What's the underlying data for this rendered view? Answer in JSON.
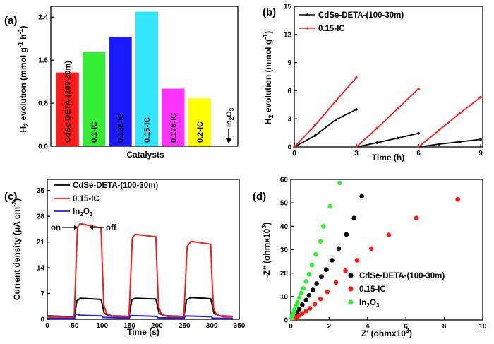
{
  "colors": {
    "black": "#000000",
    "red": "#ff1a1a",
    "blue": "#1a1aff",
    "green": "#33ee33",
    "cyan": "#33e5ff",
    "magenta": "#ff33ff",
    "yellow": "#ffff00"
  },
  "chart_data": [
    {
      "panel": "(a)",
      "type": "bar",
      "xlabel": "Catalysts",
      "ylabel": "H2 evolution (mmol g-1 h-1)",
      "ylim": [
        0,
        2.6
      ],
      "yticks": [
        "0.0",
        "0.8",
        "1.6",
        "2.4"
      ],
      "categories": [
        "CdSe-DETA-(100-30m)",
        "0.1-IC",
        "0.125-IC",
        "0.15-IC",
        "0.175-IC",
        "0.2-IC",
        "In2O3"
      ],
      "values": [
        1.37,
        1.75,
        2.03,
        2.5,
        1.07,
        0.89,
        0.0
      ],
      "bar_colors": [
        "#ff1a1a",
        "#33ee33",
        "#1a1aff",
        "#33e5ff",
        "#ff33ff",
        "#ffff00",
        "#ffffff"
      ]
    },
    {
      "panel": "(b)",
      "type": "line",
      "xlabel": "Time (h)",
      "ylabel": "H2 evolution (mmol g-1)",
      "xlim": [
        0,
        9.1
      ],
      "ylim": [
        0,
        15
      ],
      "xticks": [
        "0",
        "3",
        "6",
        "9"
      ],
      "yticks": [
        "0",
        "3",
        "6",
        "9",
        "12",
        "15"
      ],
      "series": [
        {
          "name": "CdSe-DETA-(100-30m)",
          "color": "#000000",
          "segments": [
            [
              [
                0,
                0
              ],
              [
                1,
                1.2
              ],
              [
                2,
                2.9
              ],
              [
                3,
                4.0
              ]
            ],
            [
              [
                3,
                0
              ],
              [
                4,
                0.45
              ],
              [
                5,
                0.95
              ],
              [
                6,
                1.45
              ]
            ],
            [
              [
                6,
                0
              ],
              [
                7,
                0.3
              ],
              [
                8,
                0.55
              ],
              [
                9,
                0.8
              ]
            ]
          ]
        },
        {
          "name": "0.15-IC",
          "color": "#ff1a1a",
          "segments": [
            [
              [
                0,
                0
              ],
              [
                1,
                2.3
              ],
              [
                2,
                4.9
              ],
              [
                3,
                7.4
              ]
            ],
            [
              [
                3,
                0
              ],
              [
                4,
                2.0
              ],
              [
                5,
                4.1
              ],
              [
                6,
                6.2
              ]
            ],
            [
              [
                6,
                0
              ],
              [
                7,
                1.8
              ],
              [
                8,
                3.6
              ],
              [
                9,
                5.3
              ]
            ]
          ]
        }
      ]
    },
    {
      "panel": "(c)",
      "type": "line",
      "xlabel": "Time (s)",
      "ylabel": "Current density (μA cm-2)",
      "xlim": [
        0,
        350
      ],
      "ylim": [
        0,
        38
      ],
      "xticks": [
        "0",
        "50",
        "100",
        "150",
        "200",
        "250",
        "300",
        "350"
      ],
      "yticks": [
        "0",
        "7",
        "14",
        "21",
        "28",
        "35"
      ],
      "annotations": [
        "on",
        "off"
      ],
      "series": [
        {
          "name": "CdSe-DETA-(100-30m)",
          "color": "#000000",
          "points": [
            [
              0,
              0.9
            ],
            [
              49,
              0.7
            ],
            [
              54,
              5.0
            ],
            [
              60,
              5.7
            ],
            [
              98,
              5.4
            ],
            [
              104,
              1.6
            ],
            [
              115,
              0.9
            ],
            [
              149,
              0.8
            ],
            [
              154,
              5.2
            ],
            [
              160,
              5.7
            ],
            [
              198,
              5.5
            ],
            [
              204,
              1.6
            ],
            [
              215,
              0.9
            ],
            [
              249,
              0.8
            ],
            [
              254,
              5.3
            ],
            [
              262,
              5.9
            ],
            [
              298,
              5.6
            ],
            [
              304,
              1.6
            ],
            [
              315,
              0.9
            ],
            [
              338,
              0.8
            ]
          ]
        },
        {
          "name": "0.15-IC",
          "color": "#ff1a1a",
          "points": [
            [
              0,
              0.6
            ],
            [
              49,
              0.5
            ],
            [
              55,
              25.0
            ],
            [
              60,
              26.0
            ],
            [
              98,
              24.8
            ],
            [
              100,
              16
            ],
            [
              103,
              4
            ],
            [
              108,
              1.5
            ],
            [
              120,
              0.8
            ],
            [
              149,
              0.6
            ],
            [
              155,
              22.0
            ],
            [
              160,
              23.1
            ],
            [
              198,
              22.4
            ],
            [
              200,
              14
            ],
            [
              203,
              3.5
            ],
            [
              208,
              1.4
            ],
            [
              220,
              0.7
            ],
            [
              249,
              0.6
            ],
            [
              255,
              19.8
            ],
            [
              262,
              21.2
            ],
            [
              298,
              20.4
            ],
            [
              300,
              12
            ],
            [
              303,
              3.2
            ],
            [
              308,
              1.3
            ],
            [
              320,
              0.7
            ],
            [
              338,
              0.6
            ]
          ]
        },
        {
          "name": "In2O3",
          "color": "#1a1aff",
          "points": [
            [
              0,
              0.2
            ],
            [
              49,
              0.2
            ],
            [
              52,
              1.4
            ],
            [
              60,
              1.1
            ],
            [
              99,
              0.9
            ],
            [
              102,
              0.5
            ],
            [
              149,
              0.3
            ],
            [
              152,
              1.0
            ],
            [
              199,
              0.8
            ],
            [
              202,
              0.4
            ],
            [
              249,
              0.3
            ],
            [
              252,
              0.9
            ],
            [
              299,
              0.7
            ],
            [
              302,
              0.3
            ],
            [
              338,
              0.2
            ]
          ]
        }
      ]
    },
    {
      "panel": "(d)",
      "type": "scatter",
      "xlabel": "Z' (ohmx10^3)",
      "ylabel": "-Z'' (ohmx10^3)",
      "xlim": [
        0,
        10
      ],
      "ylim": [
        0,
        60
      ],
      "xticks": [
        "0",
        "2",
        "4",
        "6",
        "8",
        "10"
      ],
      "yticks": [
        "0",
        "10",
        "20",
        "30",
        "40",
        "50",
        "60"
      ],
      "series": [
        {
          "name": "CdSe-DETA-(100-30m)",
          "color": "#000000",
          "points": [
            [
              0.1,
              0.8
            ],
            [
              0.2,
              2
            ],
            [
              0.3,
              3.2
            ],
            [
              0.45,
              4.7
            ],
            [
              0.6,
              6.5
            ],
            [
              0.8,
              8.5
            ],
            [
              0.95,
              10.5
            ],
            [
              1.15,
              12.8
            ],
            [
              1.35,
              15.5
            ],
            [
              1.6,
              18.5
            ],
            [
              1.85,
              21.5
            ],
            [
              2.15,
              25.5
            ],
            [
              2.5,
              30.5
            ],
            [
              2.9,
              36.5
            ],
            [
              3.3,
              43.5
            ],
            [
              3.7,
              52.8
            ]
          ]
        },
        {
          "name": "0.15-IC",
          "color": "#ff1a1a",
          "points": [
            [
              0.15,
              0.5
            ],
            [
              0.3,
              1.2
            ],
            [
              0.45,
              2
            ],
            [
              0.6,
              2.8
            ],
            [
              0.8,
              3.8
            ],
            [
              1.0,
              5
            ],
            [
              1.25,
              6.8
            ],
            [
              1.55,
              9
            ],
            [
              1.9,
              12
            ],
            [
              2.35,
              16
            ],
            [
              2.85,
              21
            ],
            [
              3.45,
              25.5
            ],
            [
              4.2,
              30.5
            ],
            [
              5.1,
              36.3
            ],
            [
              6.55,
              43.5
            ],
            [
              8.7,
              51.5
            ]
          ]
        },
        {
          "name": "In2O3",
          "color": "#33ee33",
          "points": [
            [
              0.05,
              0.8
            ],
            [
              0.1,
              2
            ],
            [
              0.15,
              3.2
            ],
            [
              0.2,
              4.5
            ],
            [
              0.28,
              6
            ],
            [
              0.35,
              7.5
            ],
            [
              0.45,
              9.5
            ],
            [
              0.55,
              11.5
            ],
            [
              0.65,
              13.5
            ],
            [
              0.8,
              16.5
            ],
            [
              0.95,
              19.5
            ],
            [
              1.1,
              23.5
            ],
            [
              1.3,
              28
            ],
            [
              1.55,
              33.5
            ],
            [
              1.7,
              40
            ],
            [
              2.05,
              48.5
            ],
            [
              2.55,
              58.5
            ]
          ]
        }
      ]
    }
  ]
}
